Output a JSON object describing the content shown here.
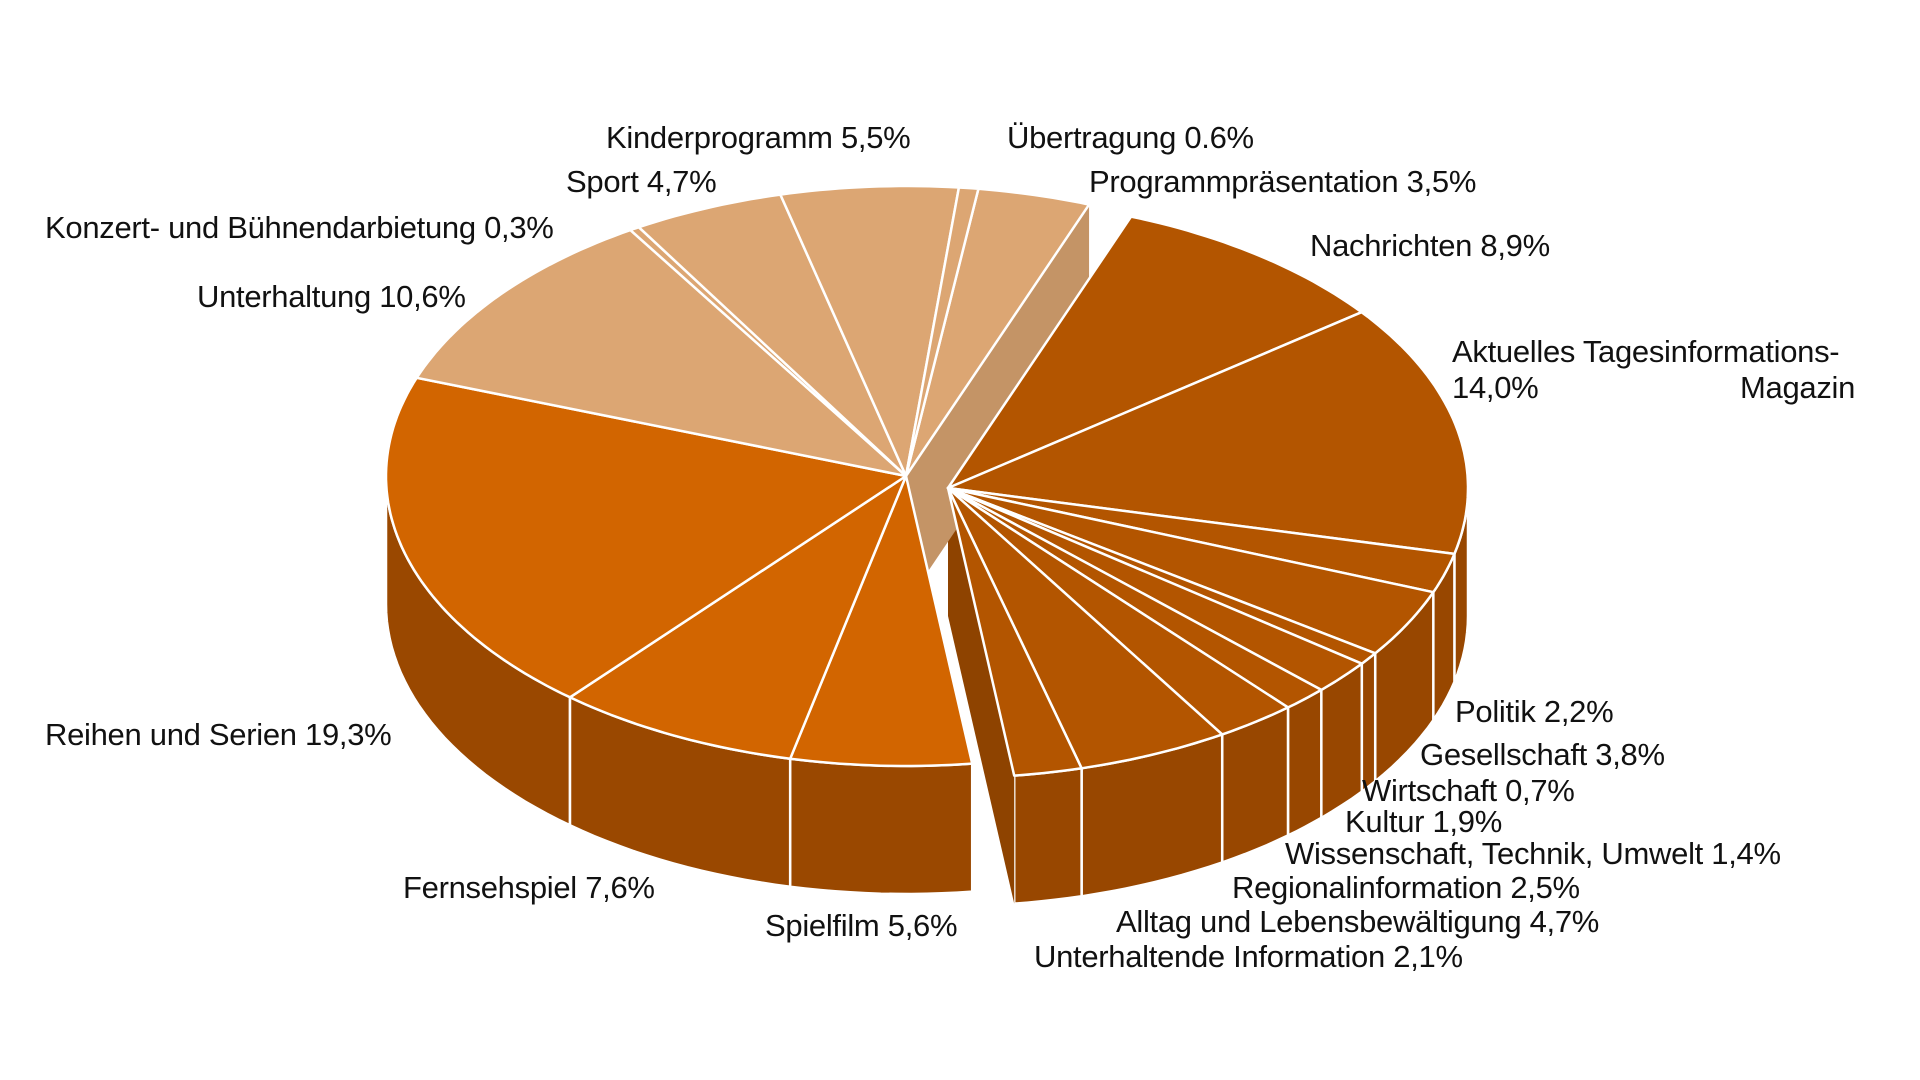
{
  "chart_data": {
    "type": "pie",
    "title": "",
    "style": "3d-exploded",
    "unit": "%",
    "slices": [
      {
        "label": "Programmpräsentation",
        "value": 3.5,
        "display": "Programmpräsentation 3,5%",
        "group": "light"
      },
      {
        "label": "Nachrichten",
        "value": 8.9,
        "display": "Nachrichten 8,9%",
        "group": "info"
      },
      {
        "label": "Aktuelles Tagesinformations-Magazin",
        "value": 14.0,
        "display_line1": "Aktuelles Tagesinformations-",
        "display_pct": "14,0%",
        "display_line2": "Magazin",
        "group": "info"
      },
      {
        "label": "Politik",
        "value": 2.2,
        "display": "Politik 2,2%",
        "group": "info"
      },
      {
        "label": "Gesellschaft",
        "value": 3.8,
        "display": "Gesellschaft 3,8%",
        "group": "info"
      },
      {
        "label": "Wirtschaft",
        "value": 0.7,
        "display": "Wirtschaft 0,7%",
        "group": "info"
      },
      {
        "label": "Kultur",
        "value": 1.9,
        "display": "Kultur 1,9%",
        "group": "info"
      },
      {
        "label": "Wissenschaft, Technik, Umwelt",
        "value": 1.4,
        "display": "Wissenschaft, Technik, Umwelt 1,4%",
        "group": "info"
      },
      {
        "label": "Regionalinformation",
        "value": 2.5,
        "display": "Regionalinformation 2,5%",
        "group": "info"
      },
      {
        "label": "Alltag und Lebensbewältigung",
        "value": 4.7,
        "display": "Alltag und Lebensbewältigung 4,7%",
        "group": "info"
      },
      {
        "label": "Unterhaltende Information",
        "value": 2.1,
        "display": "Unterhaltende Information 2,1%",
        "group": "info"
      },
      {
        "label": "Spielfilm",
        "value": 5.6,
        "display": "Spielfilm 5,6%",
        "group": "fiction"
      },
      {
        "label": "Fernsehspiel",
        "value": 7.6,
        "display": "Fernsehspiel 7,6%",
        "group": "fiction"
      },
      {
        "label": "Reihen und Serien",
        "value": 19.3,
        "display": "Reihen und Serien 19,3%",
        "group": "fiction"
      },
      {
        "label": "Unterhaltung",
        "value": 10.6,
        "display": "Unterhaltung 10,6%",
        "group": "light"
      },
      {
        "label": "Konzert- und Bühnendarbietung",
        "value": 0.3,
        "display": "Konzert- und Bühnendarbietung 0,3%",
        "group": "light"
      },
      {
        "label": "Sport",
        "value": 4.7,
        "display": "Sport 4,7%",
        "group": "light"
      },
      {
        "label": "Kinderprogramm",
        "value": 5.5,
        "display": "Kinderprogramm 5,5%",
        "group": "light"
      },
      {
        "label": "Übertragung",
        "value": 0.6,
        "display": "Übertragung 0.6%",
        "group": "light"
      }
    ],
    "colors": {
      "light_top": "#DCA673",
      "light_side": "#C49466",
      "info_top": "#B35500",
      "info_side": "#984700",
      "fiction_top": "#D26500",
      "fiction_side": "#9A4800",
      "separator": "#FFFFFF"
    },
    "exploded_group": "info",
    "legend": "none",
    "start_angle_deg": 8
  }
}
